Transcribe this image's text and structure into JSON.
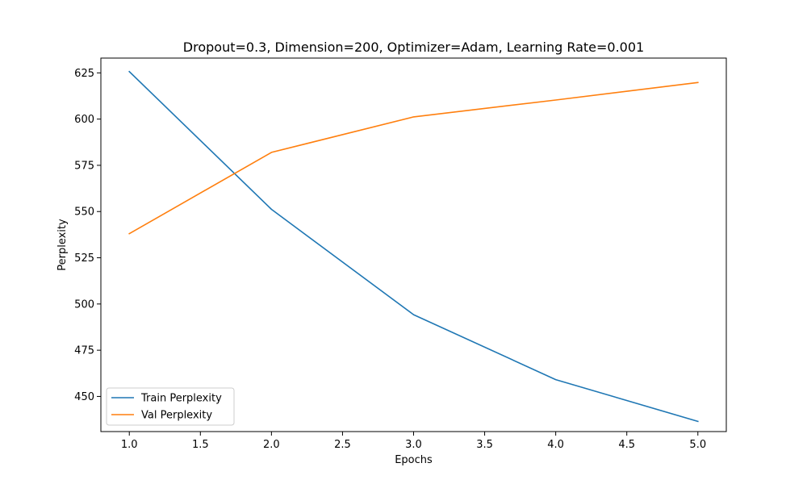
{
  "chart_data": {
    "type": "line",
    "title": "Dropout=0.3, Dimension=200, Optimizer=Adam, Learning Rate=0.001",
    "xlabel": "Epochs",
    "ylabel": "Perplexity",
    "x": [
      1,
      2,
      3,
      4,
      5
    ],
    "xlim": [
      0.8,
      5.2
    ],
    "ylim": [
      431,
      633
    ],
    "xticks": [
      "1.0",
      "1.5",
      "2.0",
      "2.5",
      "3.0",
      "3.5",
      "4.0",
      "4.5",
      "5.0"
    ],
    "yticks": [
      "450",
      "475",
      "500",
      "525",
      "550",
      "575",
      "600",
      "625"
    ],
    "grid": false,
    "legend_position": "lower-left",
    "series": [
      {
        "name": "Train Perplexity",
        "color": "#1f77b4",
        "values": [
          625.7,
          551.2,
          494.2,
          459.1,
          436.5
        ]
      },
      {
        "name": "Val Perplexity",
        "color": "#ff7f0e",
        "values": [
          538.0,
          582.0,
          601.2,
          610.3,
          619.8
        ]
      }
    ]
  }
}
